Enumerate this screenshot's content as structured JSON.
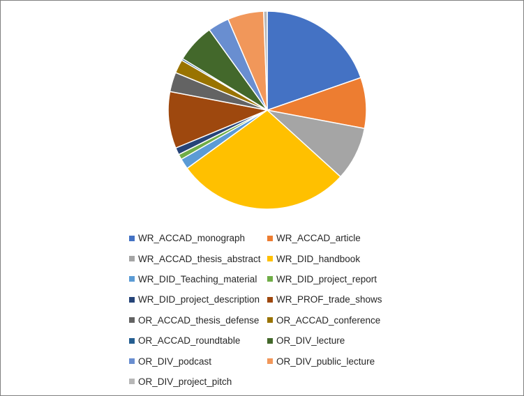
{
  "chart_data": {
    "type": "pie",
    "start_angle_deg": 0,
    "direction": "clockwise",
    "slices": [
      {
        "label": "WR_ACCAD_monograph",
        "value": 20.4,
        "color": "#4472C4"
      },
      {
        "label": "WR_ACCAD_article",
        "value": 8.6,
        "color": "#ED7D31"
      },
      {
        "label": "WR_ACCAD_thesis_abstract",
        "value": 9.1,
        "color": "#A5A5A5"
      },
      {
        "label": "WR_DID_handbook",
        "value": 29.3,
        "color": "#FFC000"
      },
      {
        "label": "WR_DID_Teaching_material",
        "value": 1.8,
        "color": "#5B9BD5"
      },
      {
        "label": "WR_DID_project_report",
        "value": 0.9,
        "color": "#70AD47"
      },
      {
        "label": "WR_DID_project_description",
        "value": 1.2,
        "color": "#264478"
      },
      {
        "label": "WR_PROF_trade_shows",
        "value": 9.6,
        "color": "#9E480E"
      },
      {
        "label": "OR_ACCAD_thesis_defense",
        "value": 3.3,
        "color": "#636363"
      },
      {
        "label": "OR_ACCAD_conference",
        "value": 2.3,
        "color": "#997300"
      },
      {
        "label": "OR_ACCAD_roundtable",
        "value": 0.3,
        "color": "#255E91"
      },
      {
        "label": "OR_DIV_lecture",
        "value": 6.6,
        "color": "#43682B"
      },
      {
        "label": "OR_DIV_podcast",
        "value": 3.6,
        "color": "#698ED0"
      },
      {
        "label": "OR_DIV_public_lecture",
        "value": 6.1,
        "color": "#F1975A"
      },
      {
        "label": "OR_DIV_project_pitch",
        "value": 0.6,
        "color": "#B7B7B7"
      }
    ],
    "legend_position": "bottom"
  }
}
